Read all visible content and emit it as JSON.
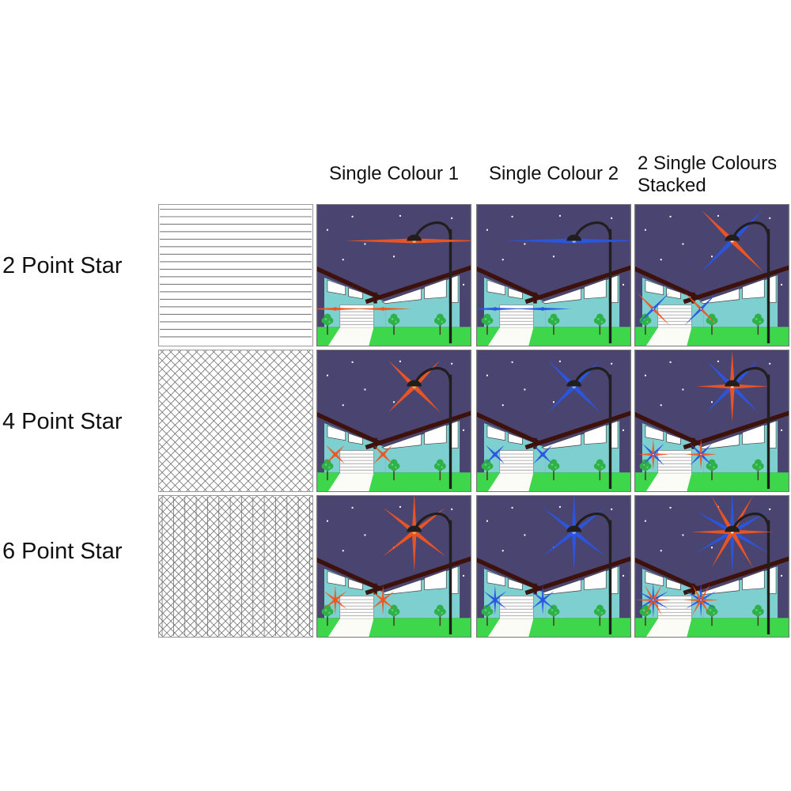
{
  "headers": {
    "single_colour_1": "Single Colour 1",
    "single_colour_2": "Single Colour 2",
    "stacked_line_1": "2 Single Colours",
    "stacked_line_2": "Stacked"
  },
  "row_labels": [
    "2 Point Star",
    "4 Point Star",
    "6 Point Star"
  ],
  "palette": {
    "sky": "#4a4470",
    "grass": "#3ed64a",
    "house": "#7ecfd0",
    "roof": "#3d120c",
    "pole": "#221e1d",
    "path": "#fbfcf5",
    "window": "#ffffff",
    "window_outline": "#444444",
    "tree": "#2fb14a",
    "tree_light": "#63d76d",
    "trunk": "#4f3b2a",
    "sky_star": "#ffffff",
    "orange": "#f0551f",
    "blue": "#2956e2",
    "orange_core": "#ffb257",
    "blue_core": "#8fb0ff",
    "stacked_core": "#ffffff",
    "pattern_line": "#6e6e6e",
    "text": "#111111"
  },
  "rows": [
    {
      "label": "2 Point Star",
      "pattern": "horizontal-lines",
      "lamp": {
        "len": 88,
        "t": 3.1
      },
      "porch": {
        "len": 36,
        "t": 1.7
      },
      "cells": [
        {
          "name": "2-point-single-colour-1",
          "stars": [
            {
              "color": "orange",
              "core": "orange_core",
              "angles": [
                0
              ]
            }
          ]
        },
        {
          "name": "2-point-single-colour-2",
          "stars": [
            {
              "color": "blue",
              "core": "blue_core",
              "angles": [
                0
              ]
            }
          ]
        },
        {
          "name": "2-point-stacked",
          "lamp_len": 56,
          "porch_len": 30,
          "stars": [
            {
              "color": "blue",
              "core": "stacked_core",
              "angles": [
                45
              ]
            },
            {
              "color": "orange",
              "core": "stacked_core",
              "angles": [
                135
              ]
            }
          ]
        }
      ]
    },
    {
      "label": "4 Point Star",
      "pattern": "diagonal-crosshatch",
      "lamp": {
        "len": 47,
        "t": 3.0
      },
      "porch": {
        "len": 17,
        "t": 1.8
      },
      "cells": [
        {
          "name": "4-point-single-colour-1",
          "stars": [
            {
              "color": "orange",
              "core": "orange_core",
              "angles": [
                45,
                135
              ]
            }
          ]
        },
        {
          "name": "4-point-single-colour-2",
          "stars": [
            {
              "color": "blue",
              "core": "blue_core",
              "angles": [
                45,
                135
              ]
            }
          ]
        },
        {
          "name": "4-point-stacked",
          "lamp_len": 46,
          "porch_len": 20,
          "stars": [
            {
              "color": "blue",
              "core": "stacked_core",
              "angles": [
                45,
                135
              ]
            },
            {
              "color": "orange",
              "core": "stacked_core",
              "angles": [
                0,
                90
              ]
            }
          ]
        }
      ]
    },
    {
      "label": "6 Point Star",
      "pattern": "diagonal-crosshatch-vertical",
      "lamp": {
        "len": 51,
        "t": 2.9
      },
      "porch": {
        "len": 19,
        "t": 1.6
      },
      "cells": [
        {
          "name": "6-point-single-colour-1",
          "stars": [
            {
              "color": "orange",
              "core": "orange_core",
              "angles": [
                90,
                38,
                142
              ]
            }
          ]
        },
        {
          "name": "6-point-single-colour-2",
          "stars": [
            {
              "color": "blue",
              "core": "blue_core",
              "angles": [
                90,
                38,
                142
              ]
            }
          ]
        },
        {
          "name": "6-point-stacked",
          "lamp_len": 53,
          "porch_len": 23,
          "stars": [
            {
              "color": "blue",
              "core": "stacked_core",
              "angles": [
                90,
                30,
                150
              ]
            },
            {
              "color": "orange",
              "core": "stacked_core",
              "angles": [
                0,
                60,
                120
              ]
            }
          ]
        }
      ]
    }
  ]
}
